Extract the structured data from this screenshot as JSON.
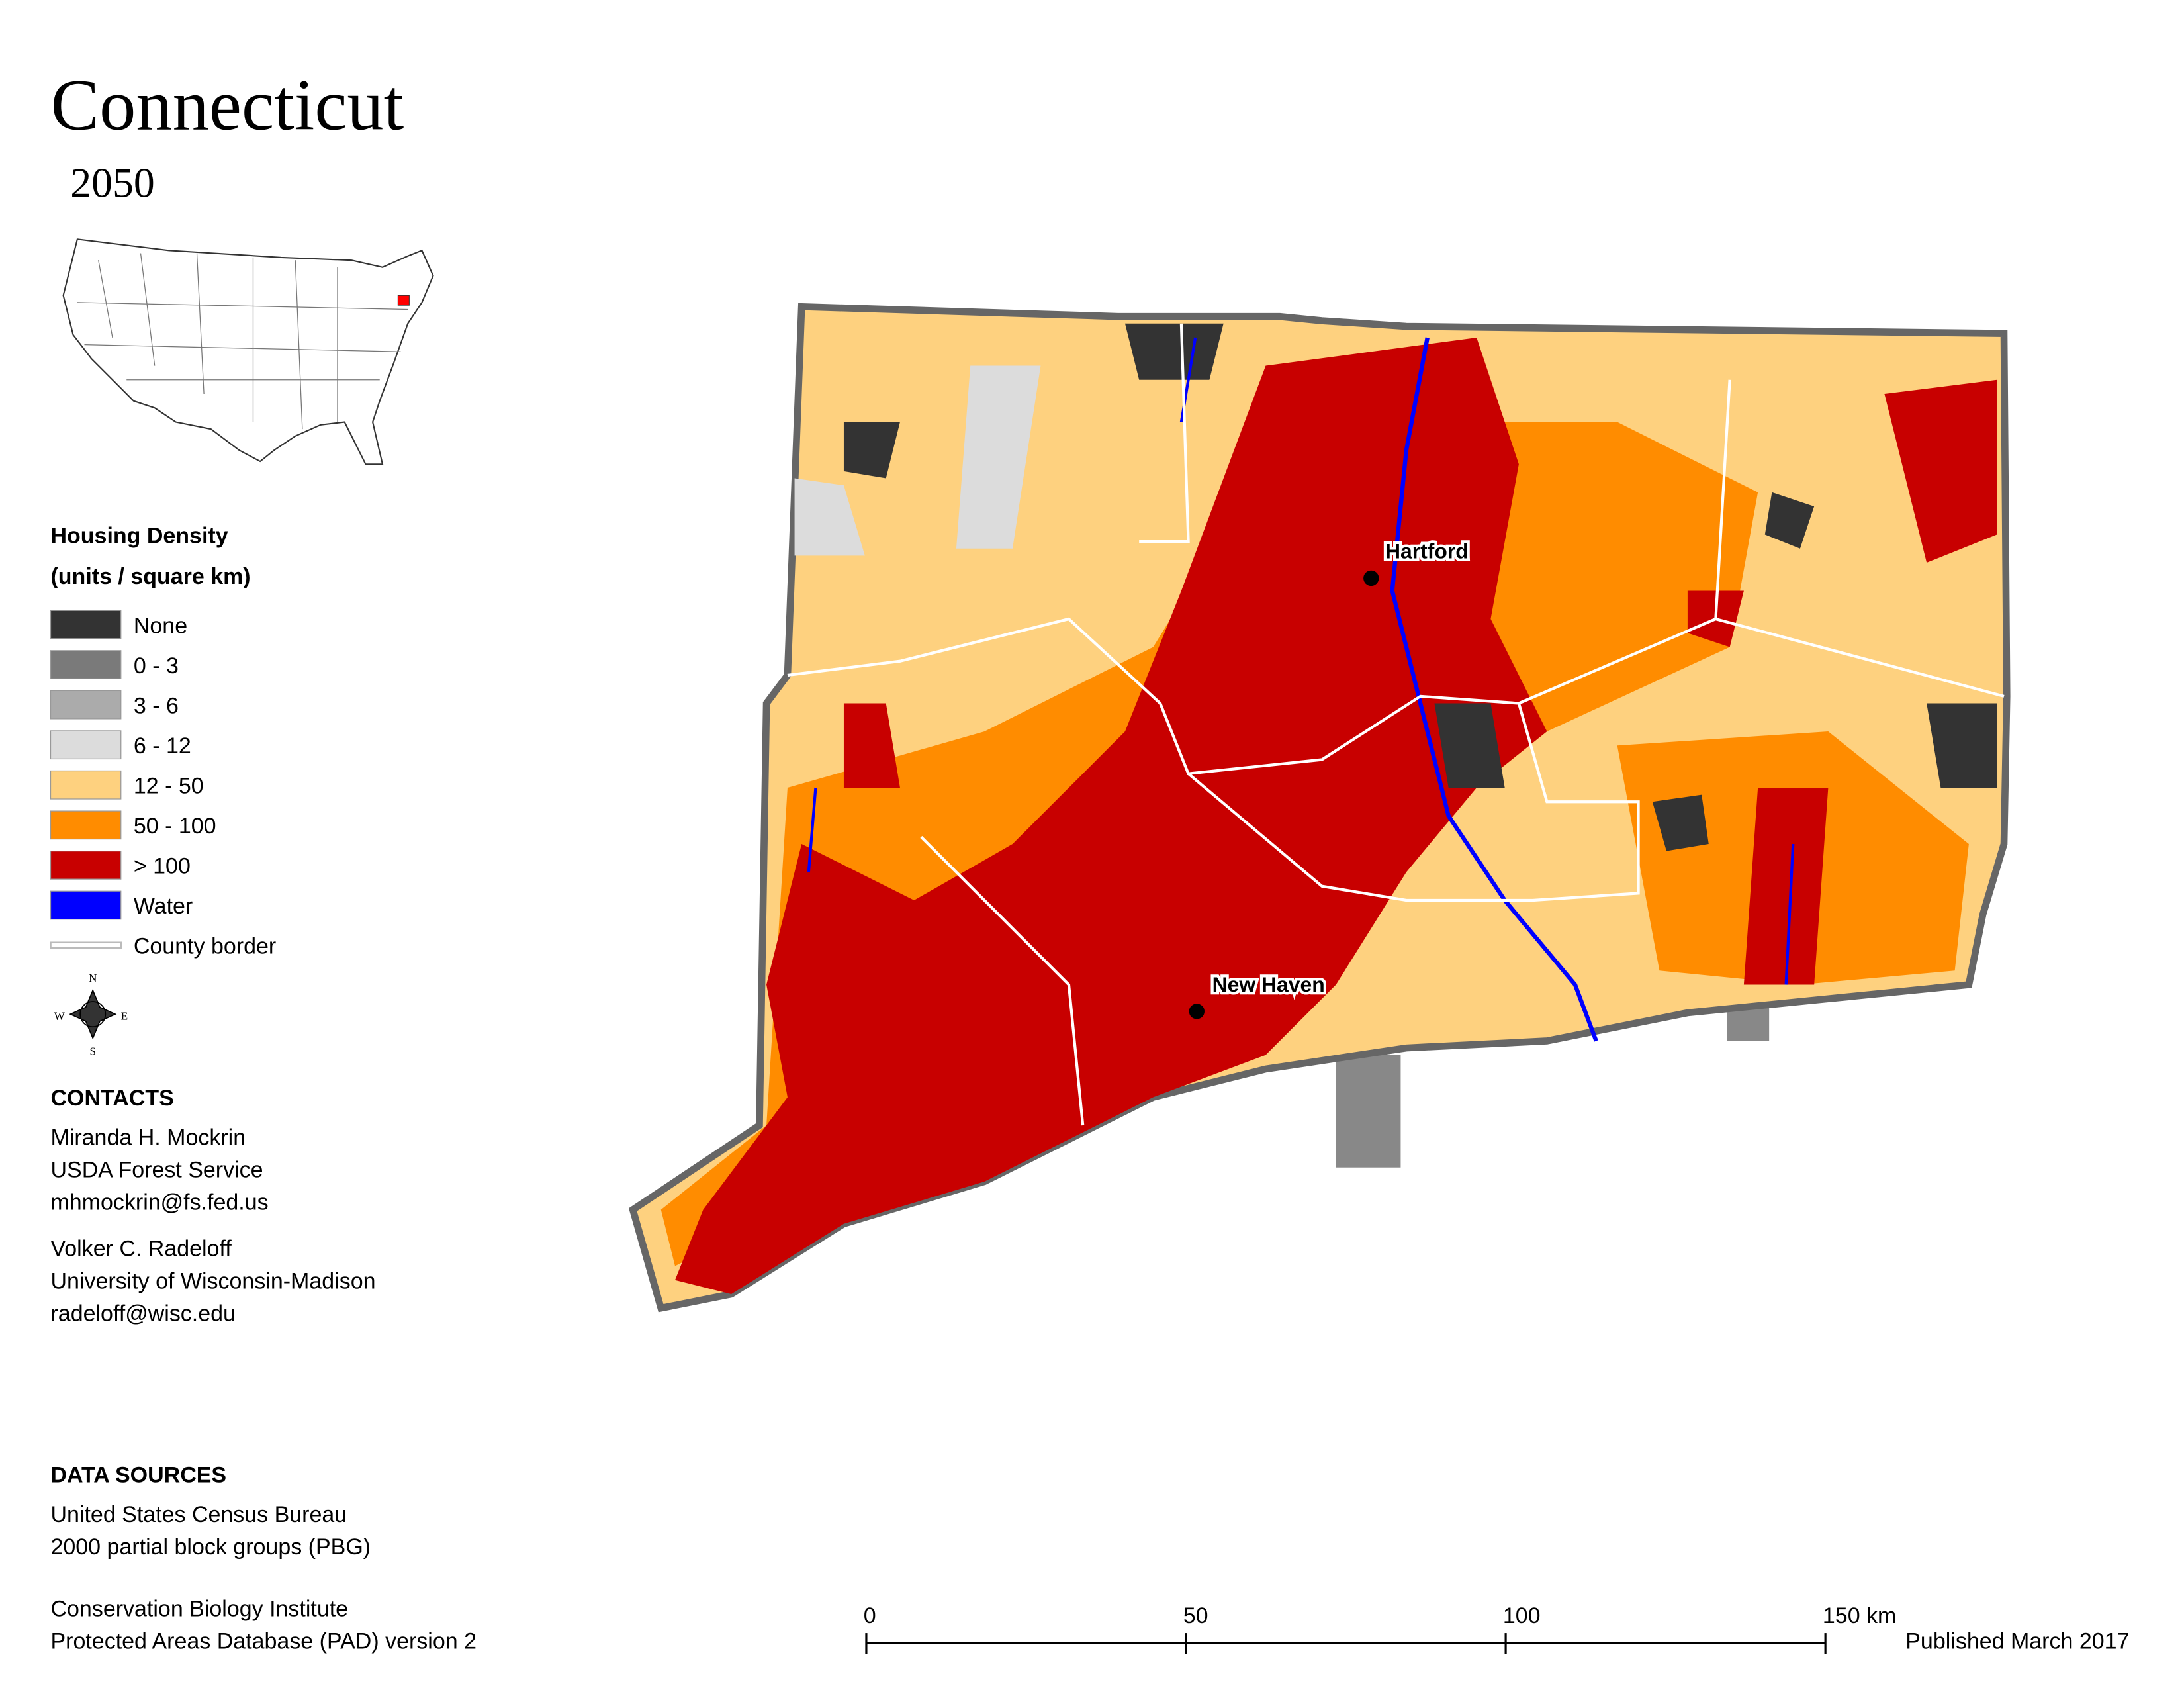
{
  "title": "Connecticut",
  "subtitle": "2050",
  "legend": {
    "title": [
      "Housing Density",
      "(units / square km)"
    ],
    "items": [
      {
        "label": "None",
        "color": "#333333"
      },
      {
        "label": "0 - 3",
        "color": "#7a7a7a"
      },
      {
        "label": "3 - 6",
        "color": "#ababab"
      },
      {
        "label": "6 - 12",
        "color": "#dcdcdc"
      },
      {
        "label": "12 - 50",
        "color": "#fed17f"
      },
      {
        "label": "50 - 100",
        "color": "#ff8c00"
      },
      {
        "label": "> 100",
        "color": "#c80000"
      },
      {
        "label": "Water",
        "color": "#0000ff"
      },
      {
        "label": "County border",
        "color": "#d9d9d9",
        "style": "line"
      }
    ]
  },
  "compass": [
    "N",
    "E",
    "S",
    "W"
  ],
  "cities": [
    "Hartford",
    "New Haven"
  ],
  "contacts": {
    "heading": "CONTACTS",
    "people": [
      [
        "Miranda H. Mockrin",
        "USDA Forest Service",
        "mhmockrin@fs.fed.us"
      ],
      [
        "Volker C. Radeloff",
        "University of Wisconsin-Madison",
        "radeloff@wisc.edu"
      ]
    ]
  },
  "sources": {
    "heading": "DATA SOURCES",
    "groups": [
      [
        "United States Census Bureau",
        "2000 partial block groups (PBG)"
      ],
      [
        "Conservation Biology Institute",
        "Protected Areas Database (PAD) version 2"
      ]
    ]
  },
  "scale_bar": {
    "ticks": [
      0,
      50,
      100,
      {
        "value": 150,
        "label": "150 km"
      }
    ]
  },
  "published": "Published March 2017"
}
